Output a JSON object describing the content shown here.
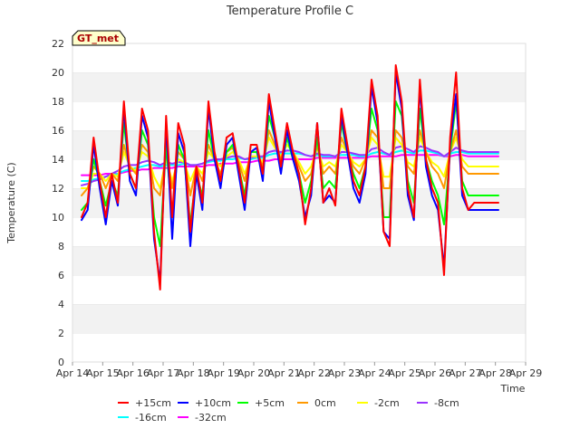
{
  "chart_data": {
    "type": "line",
    "title": "Temperature Profile C",
    "xlabel": "Time",
    "ylabel": "Temperature (C)",
    "badge": "GT_met",
    "ylim": [
      0,
      22
    ],
    "yticks": [
      0,
      2,
      4,
      6,
      8,
      10,
      12,
      14,
      16,
      18,
      20,
      22
    ],
    "xlim": [
      0,
      15
    ],
    "xticks": [
      0,
      1,
      2,
      3,
      4,
      5,
      6,
      7,
      8,
      9,
      10,
      11,
      12,
      13,
      14,
      15
    ],
    "xtick_labels": [
      "Apr 14",
      "Apr 15",
      "Apr 16",
      "Apr 17",
      "Apr 18",
      "Apr 19",
      "Apr 20",
      "Apr 21",
      "Apr 22",
      "Apr 23",
      "Apr 24",
      "Apr 25",
      "Apr 26",
      "Apr 27",
      "Apr 28",
      "Apr 29"
    ],
    "grid": "horizontal bands",
    "legend_position": "bottom",
    "x": [
      0.3,
      0.5,
      0.7,
      0.9,
      1.1,
      1.3,
      1.5,
      1.7,
      1.9,
      2.1,
      2.3,
      2.5,
      2.7,
      2.9,
      3.1,
      3.3,
      3.5,
      3.7,
      3.9,
      4.1,
      4.3,
      4.5,
      4.7,
      4.9,
      5.1,
      5.3,
      5.5,
      5.7,
      5.9,
      6.1,
      6.3,
      6.5,
      6.7,
      6.9,
      7.1,
      7.3,
      7.5,
      7.7,
      7.9,
      8.1,
      8.3,
      8.5,
      8.7,
      8.9,
      9.1,
      9.3,
      9.5,
      9.7,
      9.9,
      10.1,
      10.3,
      10.5,
      10.7,
      10.9,
      11.1,
      11.3,
      11.5,
      11.7,
      11.9,
      12.1,
      12.3,
      12.5,
      12.7,
      12.9,
      13.1,
      13.3,
      13.5,
      13.7,
      13.9,
      14.1
    ],
    "series": [
      {
        "name": "+15cm",
        "color": "#ff0000",
        "values": [
          10.0,
          11.0,
          15.5,
          12.5,
          10.0,
          13.0,
          11.0,
          18.0,
          13.0,
          12.0,
          17.5,
          16.0,
          9.0,
          5.0,
          17.0,
          10.0,
          16.5,
          15.0,
          9.0,
          13.5,
          11.0,
          18.0,
          14.5,
          12.5,
          15.5,
          15.8,
          13.5,
          11.0,
          15.0,
          15.0,
          13.0,
          18.5,
          16.0,
          13.5,
          16.5,
          14.5,
          13.0,
          9.5,
          12.0,
          16.5,
          11.0,
          12.0,
          10.8,
          17.5,
          15.0,
          12.5,
          11.5,
          13.5,
          19.5,
          17.0,
          9.0,
          8.0,
          20.5,
          18.0,
          12.0,
          10.0,
          19.5,
          14.0,
          12.0,
          11.0,
          6.0,
          15.5,
          20.0,
          12.0,
          10.5,
          11.0,
          11.0,
          11.0,
          11.0,
          11.0
        ]
      },
      {
        "name": "+10cm",
        "color": "#0000ff",
        "values": [
          9.8,
          10.5,
          15.0,
          12.0,
          9.5,
          12.5,
          10.8,
          17.5,
          12.5,
          11.5,
          17.0,
          15.5,
          8.5,
          5.5,
          16.5,
          8.5,
          15.8,
          14.5,
          8.0,
          13.0,
          10.5,
          17.5,
          14.0,
          12.0,
          15.0,
          15.5,
          13.0,
          10.5,
          14.5,
          14.8,
          12.5,
          18.0,
          15.5,
          13.0,
          16.0,
          14.0,
          12.5,
          10.0,
          11.5,
          16.5,
          11.0,
          11.5,
          11.0,
          17.0,
          14.5,
          12.0,
          11.0,
          13.0,
          19.0,
          16.5,
          9.0,
          8.5,
          20.0,
          17.5,
          11.5,
          9.8,
          19.0,
          13.5,
          11.5,
          10.5,
          6.5,
          15.0,
          18.5,
          11.5,
          10.5,
          10.5,
          10.5,
          10.5,
          10.5,
          10.5
        ]
      },
      {
        "name": "+5cm",
        "color": "#00ff00",
        "values": [
          10.5,
          11.0,
          14.0,
          12.5,
          10.8,
          12.5,
          11.5,
          16.5,
          13.0,
          12.0,
          16.0,
          15.0,
          10.0,
          8.0,
          15.0,
          10.0,
          15.0,
          14.0,
          9.5,
          13.0,
          11.5,
          16.0,
          14.0,
          12.5,
          14.5,
          15.0,
          13.5,
          11.5,
          14.5,
          14.5,
          13.0,
          17.0,
          15.5,
          13.5,
          15.5,
          14.0,
          13.0,
          11.0,
          12.5,
          15.5,
          12.0,
          12.5,
          12.0,
          16.5,
          14.5,
          13.0,
          12.0,
          13.5,
          17.5,
          16.0,
          10.0,
          10.0,
          18.0,
          17.0,
          12.5,
          11.0,
          17.5,
          14.0,
          12.5,
          11.5,
          9.5,
          14.5,
          18.0,
          12.5,
          11.5,
          11.5,
          11.5,
          11.5,
          11.5,
          11.5
        ]
      },
      {
        "name": "0cm",
        "color": "#ff9900",
        "values": [
          11.5,
          12.0,
          13.5,
          13.0,
          12.0,
          13.0,
          12.5,
          15.0,
          13.5,
          13.0,
          15.0,
          14.5,
          12.0,
          11.5,
          14.5,
          12.0,
          14.5,
          14.0,
          11.5,
          13.5,
          12.5,
          15.0,
          14.0,
          13.0,
          14.5,
          14.8,
          13.8,
          12.5,
          14.5,
          14.5,
          13.5,
          16.0,
          15.0,
          14.0,
          15.5,
          14.5,
          13.5,
          12.5,
          13.0,
          15.0,
          13.0,
          13.5,
          13.0,
          15.5,
          14.5,
          13.5,
          13.0,
          14.0,
          16.0,
          15.5,
          12.0,
          12.0,
          16.0,
          15.5,
          13.5,
          13.0,
          16.0,
          14.5,
          13.5,
          13.0,
          12.0,
          14.5,
          16.0,
          13.5,
          13.0,
          13.0,
          13.0,
          13.0,
          13.0,
          13.0
        ]
      },
      {
        "name": "-2cm",
        "color": "#ffff00",
        "values": [
          12.0,
          12.0,
          13.0,
          13.0,
          12.5,
          13.0,
          12.8,
          14.5,
          13.5,
          13.2,
          14.5,
          14.2,
          12.8,
          12.0,
          14.0,
          12.5,
          14.0,
          13.8,
          12.5,
          13.5,
          13.0,
          14.5,
          14.0,
          13.5,
          14.2,
          14.5,
          14.0,
          13.0,
          14.2,
          14.2,
          13.8,
          15.5,
          14.8,
          14.2,
          15.0,
          14.5,
          13.8,
          13.0,
          13.5,
          14.8,
          13.5,
          13.8,
          13.5,
          15.0,
          14.5,
          13.8,
          13.5,
          14.0,
          15.5,
          15.0,
          12.8,
          12.8,
          15.5,
          15.0,
          13.8,
          13.5,
          15.5,
          14.5,
          13.8,
          13.5,
          12.8,
          14.5,
          15.5,
          14.0,
          13.5,
          13.5,
          13.5,
          13.5,
          13.5,
          13.5
        ]
      },
      {
        "name": "-8cm",
        "color": "#9933ff",
        "values": [
          12.2,
          12.3,
          12.5,
          12.6,
          12.8,
          13.0,
          13.2,
          13.5,
          13.6,
          13.6,
          13.8,
          13.9,
          13.8,
          13.6,
          13.8,
          13.7,
          13.8,
          13.8,
          13.6,
          13.6,
          13.7,
          13.9,
          14.0,
          14.0,
          14.1,
          14.2,
          14.2,
          14.0,
          14.1,
          14.2,
          14.2,
          14.5,
          14.6,
          14.5,
          14.6,
          14.6,
          14.5,
          14.3,
          14.2,
          14.4,
          14.3,
          14.3,
          14.2,
          14.5,
          14.5,
          14.4,
          14.3,
          14.3,
          14.7,
          14.8,
          14.5,
          14.3,
          14.8,
          14.9,
          14.7,
          14.5,
          14.9,
          14.8,
          14.6,
          14.5,
          14.2,
          14.5,
          14.8,
          14.6,
          14.5,
          14.5,
          14.5,
          14.5,
          14.5,
          14.5
        ]
      },
      {
        "name": "-16cm",
        "color": "#00ffff",
        "values": [
          12.5,
          12.5,
          12.6,
          12.7,
          12.8,
          12.9,
          13.0,
          13.2,
          13.3,
          13.4,
          13.5,
          13.6,
          13.6,
          13.5,
          13.6,
          13.6,
          13.6,
          13.7,
          13.6,
          13.6,
          13.7,
          13.8,
          13.9,
          13.9,
          14.0,
          14.0,
          14.1,
          14.0,
          14.0,
          14.1,
          14.1,
          14.3,
          14.4,
          14.4,
          14.4,
          14.4,
          14.4,
          14.3,
          14.2,
          14.3,
          14.2,
          14.2,
          14.2,
          14.3,
          14.3,
          14.3,
          14.2,
          14.2,
          14.4,
          14.5,
          14.4,
          14.3,
          14.5,
          14.6,
          14.5,
          14.4,
          14.6,
          14.6,
          14.5,
          14.4,
          14.2,
          14.4,
          14.5,
          14.5,
          14.4,
          14.4,
          14.4,
          14.4,
          14.4,
          14.4
        ]
      },
      {
        "name": "-32cm",
        "color": "#ff00ff",
        "values": [
          12.9,
          12.9,
          12.9,
          12.9,
          13.0,
          13.0,
          13.0,
          13.1,
          13.2,
          13.2,
          13.3,
          13.3,
          13.4,
          13.4,
          13.4,
          13.4,
          13.5,
          13.5,
          13.5,
          13.5,
          13.5,
          13.6,
          13.6,
          13.7,
          13.7,
          13.7,
          13.8,
          13.8,
          13.8,
          13.9,
          13.9,
          13.9,
          14.0,
          14.0,
          14.0,
          14.0,
          14.0,
          14.0,
          14.0,
          14.1,
          14.1,
          14.1,
          14.1,
          14.1,
          14.1,
          14.1,
          14.1,
          14.1,
          14.2,
          14.2,
          14.2,
          14.2,
          14.2,
          14.3,
          14.3,
          14.3,
          14.3,
          14.3,
          14.3,
          14.3,
          14.2,
          14.2,
          14.3,
          14.3,
          14.2,
          14.2,
          14.2,
          14.2,
          14.2,
          14.2
        ]
      }
    ]
  }
}
